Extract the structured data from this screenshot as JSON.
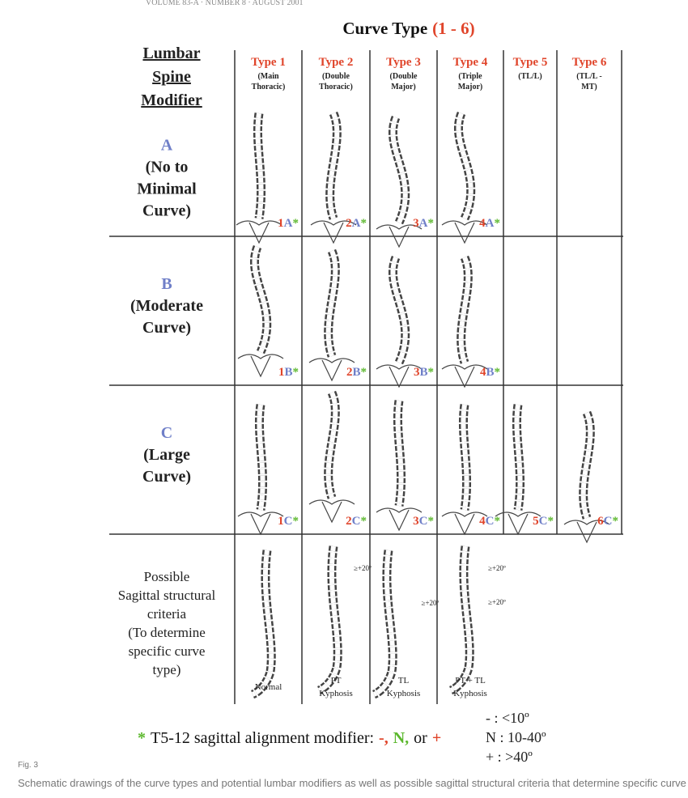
{
  "running_header": "VOLUME 83-A · NUMBER 8 · AUGUST 2001",
  "title": "Curve Type",
  "title_range": "(1 - 6)",
  "row_header_title": [
    "Lumbar",
    "Spine",
    "Modifier"
  ],
  "columns": [
    {
      "type": "Type 1",
      "desc": [
        "(Main",
        "Thoracic)"
      ]
    },
    {
      "type": "Type 2",
      "desc": [
        "(Double",
        "Thoracic)"
      ]
    },
    {
      "type": "Type 3",
      "desc": [
        "(Double",
        "Major)"
      ]
    },
    {
      "type": "Type 4",
      "desc": [
        "(Triple",
        "Major)"
      ]
    },
    {
      "type": "Type 5",
      "desc": [
        "(TL/L)"
      ]
    },
    {
      "type": "Type 6",
      "desc": [
        "(TL/L -",
        "MT)"
      ]
    }
  ],
  "rows": [
    {
      "letter": "A",
      "desc": [
        "(No to",
        "Minimal",
        "Curve)"
      ],
      "cells": [
        {
          "num": "1",
          "letter": "A",
          "mark": "*"
        },
        {
          "num": "2",
          "letter": "A",
          "mark": "*"
        },
        {
          "num": "3",
          "letter": "A",
          "mark": "*"
        },
        {
          "num": "4",
          "letter": "A",
          "mark": "*"
        }
      ]
    },
    {
      "letter": "B",
      "desc": [
        "(Moderate",
        "Curve)"
      ],
      "cells": [
        {
          "num": "1",
          "letter": "B",
          "mark": "*"
        },
        {
          "num": "2",
          "letter": "B",
          "mark": "*"
        },
        {
          "num": "3",
          "letter": "B",
          "mark": "*"
        },
        {
          "num": "4",
          "letter": "B",
          "mark": "*"
        }
      ]
    },
    {
      "letter": "C",
      "desc": [
        "(Large",
        "Curve)"
      ],
      "cells": [
        {
          "num": "1",
          "letter": "C",
          "mark": "*"
        },
        {
          "num": "2",
          "letter": "C",
          "mark": "*"
        },
        {
          "num": "3",
          "letter": "C",
          "mark": "*"
        },
        {
          "num": "4",
          "letter": "C",
          "mark": "*"
        },
        {
          "num": "5",
          "letter": "C",
          "mark": "*"
        },
        {
          "num": "6",
          "letter": "C",
          "mark": "*"
        }
      ]
    }
  ],
  "sagittal": {
    "header": [
      "Possible",
      "Sagittal structural",
      "criteria",
      "(To determine",
      "specific curve",
      "type)"
    ],
    "cells": [
      {
        "label": [
          "Normal"
        ]
      },
      {
        "label": [
          "PT",
          "Kyphosis"
        ],
        "notes": [
          "≥+20º"
        ]
      },
      {
        "label": [
          "TL",
          "Kyphosis"
        ],
        "notes": [
          "≥+20º"
        ]
      },
      {
        "label": [
          "PT + TL",
          "Kyphosis"
        ],
        "notes": [
          "≥+20º",
          "≥+20º"
        ]
      }
    ]
  },
  "legend": {
    "parts": [
      {
        "text": "*",
        "color": "#5cb82e"
      },
      {
        "text": "T5-12 sagittal alignment modifier:",
        "color": "#111111"
      },
      {
        "text": "-,",
        "color": "#e0452b"
      },
      {
        "text": "N,",
        "color": "#5cb82e"
      },
      {
        "text": "or",
        "color": "#111111"
      },
      {
        "text": "+",
        "color": "#e0452b"
      }
    ],
    "key": [
      "- : <10º",
      "N : 10-40º",
      "+ : >40º"
    ]
  },
  "figure_label": "Fig. 3",
  "caption": "Schematic drawings of the curve types and potential lumbar modifiers as well as possible sagittal structural criteria that determine specific curve type."
}
